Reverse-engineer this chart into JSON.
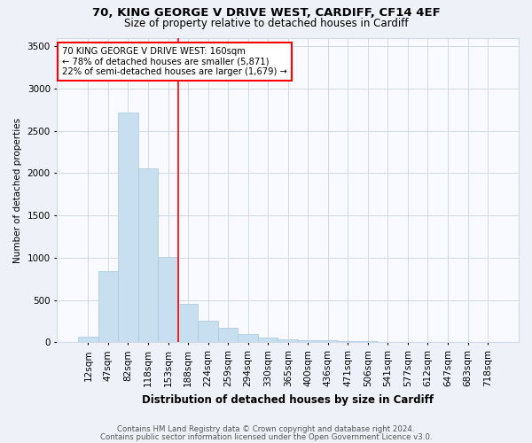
{
  "title1": "70, KING GEORGE V DRIVE WEST, CARDIFF, CF14 4EF",
  "title2": "Size of property relative to detached houses in Cardiff",
  "xlabel": "Distribution of detached houses by size in Cardiff",
  "ylabel": "Number of detached properties",
  "categories": [
    "12sqm",
    "47sqm",
    "82sqm",
    "118sqm",
    "153sqm",
    "188sqm",
    "224sqm",
    "259sqm",
    "294sqm",
    "330sqm",
    "365sqm",
    "400sqm",
    "436sqm",
    "471sqm",
    "506sqm",
    "541sqm",
    "577sqm",
    "612sqm",
    "647sqm",
    "683sqm",
    "718sqm"
  ],
  "values": [
    70,
    840,
    2720,
    2060,
    1010,
    450,
    255,
    175,
    100,
    55,
    35,
    30,
    22,
    18,
    10,
    7,
    5,
    4,
    3,
    2,
    1
  ],
  "bar_color": "#c8dff0",
  "bar_edge_color": "#a8c8e0",
  "vline_color": "red",
  "vline_x": 4.5,
  "annotation_line1": "70 KING GEORGE V DRIVE WEST: 160sqm",
  "annotation_line2": "← 78% of detached houses are smaller (5,871)",
  "annotation_line3": "22% of semi-detached houses are larger (1,679) →",
  "annotation_box_color": "white",
  "annotation_box_edge": "red",
  "ylim": [
    0,
    3600
  ],
  "yticks": [
    0,
    500,
    1000,
    1500,
    2000,
    2500,
    3000,
    3500
  ],
  "footer1": "Contains HM Land Registry data © Crown copyright and database right 2024.",
  "footer2": "Contains public sector information licensed under the Open Government Licence v3.0.",
  "bg_color": "#eef2f8",
  "plot_bg_color": "#f8faff",
  "grid_color": "#d0daea",
  "title1_fontsize": 9.5,
  "title2_fontsize": 8.5
}
